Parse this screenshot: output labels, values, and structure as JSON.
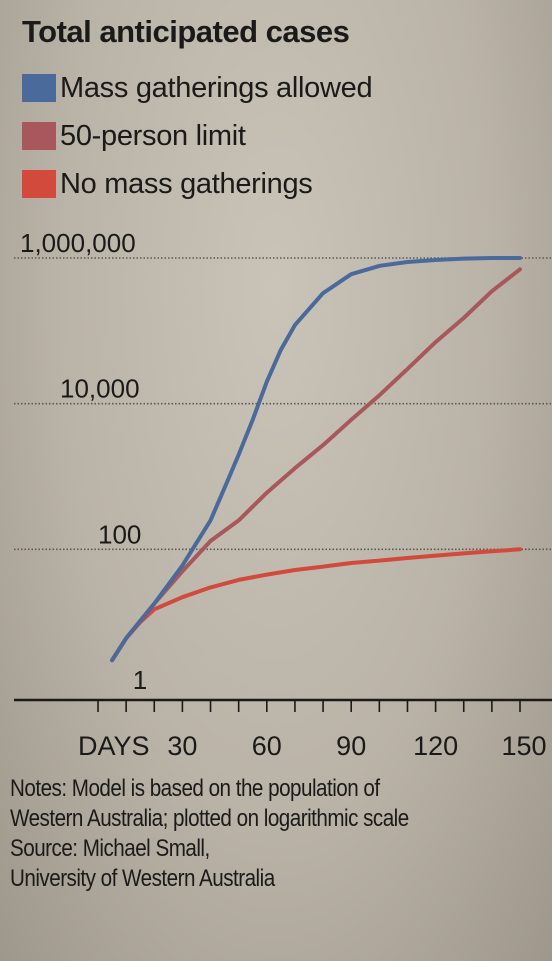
{
  "chart_data": {
    "type": "line",
    "title": "Total anticipated cases",
    "xlabel": "DAYS",
    "x_ticks": [
      30,
      60,
      90,
      120,
      150
    ],
    "x_tick_labels": [
      "30",
      "60",
      "90",
      "120",
      "150"
    ],
    "xlim": [
      0,
      150
    ],
    "yscale": "log",
    "ylim": [
      1,
      1000000
    ],
    "y_ticks": [
      1,
      100,
      10000,
      1000000
    ],
    "y_tick_labels": [
      "1",
      "100",
      "10,000",
      "1,000,000"
    ],
    "grid": "horizontal dotted",
    "legend_position": "top-left",
    "series": [
      {
        "name": "Mass gatherings allowed",
        "color": "#4a6a9c",
        "x": [
          5,
          10,
          20,
          30,
          40,
          45,
          50,
          55,
          60,
          65,
          70,
          80,
          90,
          100,
          110,
          120,
          130,
          140,
          150
        ],
        "y": [
          3,
          6,
          18,
          60,
          250,
          700,
          2000,
          6000,
          20000,
          55000,
          120000,
          330000,
          600000,
          780000,
          880000,
          940000,
          980000,
          1000000,
          1000000
        ]
      },
      {
        "name": "50-person limit",
        "color": "#a8585c",
        "x": [
          5,
          10,
          20,
          30,
          40,
          50,
          60,
          70,
          80,
          90,
          100,
          110,
          120,
          130,
          140,
          150
        ],
        "y": [
          3,
          6,
          18,
          50,
          130,
          250,
          600,
          1300,
          2700,
          6000,
          13000,
          30000,
          70000,
          150000,
          350000,
          700000
        ]
      },
      {
        "name": "No mass gatherings",
        "color": "#d24a3c",
        "x": [
          5,
          10,
          15,
          20,
          30,
          40,
          50,
          60,
          70,
          80,
          90,
          100,
          110,
          120,
          130,
          140,
          150
        ],
        "y": [
          3,
          6,
          10,
          15,
          22,
          30,
          38,
          45,
          52,
          58,
          65,
          70,
          76,
          82,
          88,
          94,
          100
        ]
      }
    ]
  },
  "notes": {
    "line1": "Notes: Model is based on the population of",
    "line2": "Western Australia; plotted on logarithmic scale",
    "line3": "Source: Michael Small,",
    "line4": "University of Western Australia"
  }
}
